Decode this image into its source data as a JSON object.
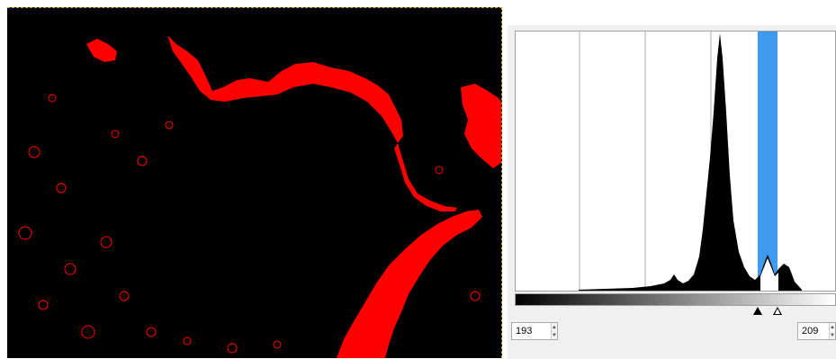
{
  "colors": {
    "selection_red": "#ff0000",
    "background": "#000000",
    "range_highlight": "#3d9aef",
    "histogram_fill": "#000000"
  },
  "threshold": {
    "low_value": "193",
    "high_value": "209",
    "low_fraction": 0.757,
    "high_fraction": 0.82
  },
  "icons": {
    "low_handle": "filled-triangle-icon",
    "high_handle": "hollow-triangle-icon",
    "spin": "spin-arrows-icon"
  },
  "spin_glyphs": {
    "up": "▲",
    "down": "▼"
  }
}
